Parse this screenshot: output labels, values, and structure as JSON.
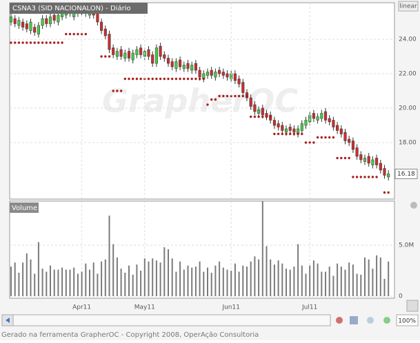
{
  "chart_data": [
    {
      "type": "candlestick",
      "title": "CSNA3 (SID NACIONALON) - Diário",
      "scale": "linear",
      "watermark": "GrapherOC",
      "open": [
        25.0,
        25.2,
        24.8,
        25.0,
        24.9,
        24.5,
        24.7,
        24.3,
        24.8,
        25.2,
        24.9,
        25.4,
        25.0,
        25.3,
        25.4,
        25.8,
        25.3,
        25.5,
        25.9,
        25.7,
        25.4,
        25.8,
        25.5,
        25.0,
        24.6,
        24.3,
        23.5,
        23.0,
        23.4,
        22.9,
        23.3,
        22.8,
        23.1,
        23.5,
        23.0,
        23.4,
        23.1,
        22.6,
        23.6,
        23.1,
        22.9,
        22.7,
        22.3,
        22.8,
        22.3,
        22.6,
        22.2,
        22.6,
        22.2,
        21.7,
        21.9,
        22.2,
        21.8,
        22.2,
        22.1,
        22.0,
        21.7,
        22.0,
        21.7,
        21.5,
        20.9,
        20.6,
        20.2,
        19.7,
        20.0,
        19.7,
        19.6,
        19.3,
        19.1,
        19.0,
        18.6,
        18.9,
        18.8,
        18.5,
        18.7,
        19.0,
        19.2,
        19.7,
        19.3,
        19.4,
        19.8,
        19.4,
        19.3,
        19.0,
        18.8,
        18.6,
        18.2,
        18.1,
        17.7,
        17.3,
        16.9,
        17.2,
        16.7,
        17.1,
        16.8,
        16.5,
        16.0
      ],
      "high": [
        25.5,
        25.4,
        25.3,
        25.2,
        25.1,
        25.2,
        24.9,
        25.0,
        25.4,
        25.4,
        25.5,
        25.6,
        25.6,
        25.7,
        25.9,
        26.0,
        25.8,
        26.0,
        26.0,
        25.9,
        25.9,
        26.0,
        25.7,
        25.2,
        24.8,
        24.5,
        23.7,
        23.5,
        23.6,
        23.4,
        23.5,
        23.4,
        23.6,
        23.7,
        23.5,
        23.6,
        23.3,
        23.7,
        23.8,
        23.3,
        23.1,
        22.9,
        22.9,
        23.0,
        22.7,
        22.8,
        22.7,
        22.8,
        22.4,
        22.2,
        22.3,
        22.4,
        22.3,
        22.4,
        22.3,
        22.2,
        22.2,
        22.2,
        21.9,
        21.7,
        21.1,
        20.8,
        20.4,
        20.1,
        20.2,
        19.9,
        19.8,
        19.5,
        19.3,
        19.2,
        19.0,
        19.1,
        19.0,
        19.0,
        19.3,
        19.5,
        19.8,
        19.9,
        19.7,
        19.9,
        20.0,
        19.6,
        19.5,
        19.2,
        19.0,
        18.8,
        18.4,
        18.3,
        17.9,
        17.5,
        17.3,
        17.4,
        17.2,
        17.3,
        17.0,
        16.7,
        16.4
      ],
      "low": [
        24.8,
        24.7,
        24.6,
        24.5,
        24.4,
        24.3,
        24.2,
        24.1,
        24.6,
        24.7,
        24.7,
        24.9,
        24.8,
        25.1,
        25.2,
        25.3,
        25.1,
        25.3,
        25.4,
        25.3,
        25.2,
        25.2,
        24.8,
        24.3,
        24.0,
        23.2,
        22.9,
        22.8,
        22.8,
        22.7,
        22.7,
        22.6,
        22.9,
        22.9,
        22.8,
        22.8,
        22.4,
        22.4,
        22.8,
        22.7,
        22.4,
        22.2,
        22.1,
        22.2,
        22.1,
        22.1,
        22.0,
        22.0,
        21.6,
        21.5,
        21.7,
        21.7,
        21.6,
        21.8,
        21.7,
        21.6,
        21.5,
        21.4,
        21.2,
        20.7,
        20.4,
        19.9,
        19.6,
        19.5,
        19.4,
        19.3,
        19.1,
        18.8,
        18.7,
        18.5,
        18.4,
        18.5,
        18.4,
        18.3,
        18.5,
        18.8,
        19.0,
        19.2,
        19.1,
        19.2,
        19.1,
        19.0,
        18.7,
        18.5,
        18.3,
        17.9,
        17.8,
        17.4,
        17.0,
        16.8,
        16.7,
        16.6,
        16.5,
        16.5,
        16.2,
        15.9,
        15.8
      ],
      "close": [
        25.3,
        24.9,
        25.1,
        24.7,
        24.6,
        25.0,
        24.4,
        24.8,
        25.2,
        24.9,
        25.3,
        25.1,
        25.4,
        25.5,
        25.7,
        25.5,
        25.6,
        25.8,
        25.6,
        25.5,
        25.7,
        25.4,
        25.0,
        24.5,
        24.2,
        23.4,
        23.1,
        23.3,
        23.0,
        23.2,
        22.9,
        23.2,
        23.4,
        23.1,
        23.3,
        23.0,
        22.6,
        23.5,
        23.0,
        22.9,
        22.6,
        22.4,
        22.7,
        22.4,
        22.5,
        22.3,
        22.5,
        22.2,
        21.8,
        22.0,
        22.1,
        21.9,
        22.1,
        22.0,
        21.9,
        21.8,
        22.0,
        21.6,
        21.4,
        20.9,
        20.6,
        20.1,
        19.8,
        19.9,
        19.6,
        19.5,
        19.3,
        19.0,
        18.9,
        18.7,
        18.8,
        18.7,
        18.6,
        18.8,
        19.1,
        19.3,
        19.6,
        19.4,
        19.5,
        19.7,
        19.3,
        19.2,
        18.9,
        18.7,
        18.5,
        18.1,
        18.0,
        17.6,
        17.2,
        17.0,
        17.1,
        16.8,
        17.0,
        16.7,
        16.4,
        16.1,
        16.18
      ],
      "stop": [
        23.8,
        23.8,
        23.8,
        23.8,
        23.8,
        23.8,
        23.8,
        23.8,
        23.8,
        23.8,
        23.8,
        23.8,
        23.8,
        23.8,
        24.3,
        24.3,
        24.3,
        24.3,
        24.3,
        24.3,
        null,
        null,
        null,
        23.0,
        23.0,
        23.0,
        21.0,
        21.0,
        21.0,
        21.7,
        21.7,
        21.7,
        21.7,
        21.7,
        21.7,
        21.7,
        21.7,
        21.7,
        21.7,
        21.7,
        21.7,
        21.7,
        21.7,
        21.7,
        21.7,
        21.7,
        21.7,
        21.7,
        21.7,
        21.7,
        20.2,
        20.5,
        20.5,
        20.7,
        20.7,
        20.7,
        20.7,
        20.7,
        20.7,
        20.7,
        20.7,
        19.5,
        19.5,
        19.5,
        19.5,
        19.5,
        19.5,
        18.5,
        18.5,
        18.5,
        18.5,
        18.5,
        18.5,
        18.5,
        18.5,
        18.0,
        18.0,
        18.0,
        18.3,
        18.3,
        18.3,
        18.3,
        18.3,
        17.1,
        17.1,
        17.1,
        17.1,
        16.0,
        16.0,
        16.0,
        16.0,
        16.0,
        16.0,
        16.0,
        null,
        15.1,
        15.1
      ],
      "up_color": "#44cc44",
      "down_color": "#c83030",
      "stop_color": "#a82020",
      "ylim": [
        14.72,
        26.12
      ],
      "yticks": [
        {
          "value": 18,
          "label": "18.00"
        },
        {
          "value": 20,
          "label": "20.00"
        },
        {
          "value": 22,
          "label": "22.00"
        },
        {
          "value": 24,
          "label": "24.00"
        }
      ],
      "grid": true
    },
    {
      "type": "bar",
      "title": "Volume",
      "color": "#7a7a7a",
      "categories": [
        null,
        null,
        null,
        null,
        null,
        null,
        null,
        null,
        null,
        null,
        null,
        null,
        null,
        null,
        null,
        null,
        null,
        null,
        "Apr11",
        null,
        null,
        null,
        null,
        null,
        null,
        null,
        null,
        null,
        null,
        null,
        null,
        null,
        null,
        null,
        "May11",
        null,
        null,
        null,
        null,
        null,
        null,
        null,
        null,
        null,
        null,
        null,
        null,
        null,
        null,
        null,
        null,
        null,
        null,
        null,
        null,
        null,
        "Jun11",
        null,
        null,
        null,
        null,
        null,
        null,
        null,
        null,
        null,
        null,
        null,
        null,
        null,
        null,
        null,
        null,
        null,
        null,
        null,
        "Jul11",
        null,
        null,
        null,
        null,
        null,
        null,
        null,
        null,
        null,
        null,
        null,
        null,
        null,
        null,
        null,
        null,
        null,
        null,
        null,
        null
      ],
      "values": [
        2.9,
        3.3,
        2.3,
        3.3,
        4.2,
        3.6,
        2.2,
        5.3,
        2.7,
        2.4,
        3.0,
        2.6,
        2.6,
        2.8,
        2.6,
        2.6,
        2.8,
        2.2,
        2.4,
        3.2,
        2.6,
        3.3,
        2.2,
        3.4,
        3.6,
        7.9,
        5.1,
        3.8,
        2.7,
        2.3,
        3.0,
        2.1,
        3.1,
        2.5,
        3.7,
        3.4,
        3.7,
        3.5,
        3.3,
        4.8,
        4.6,
        3.7,
        2.4,
        3.4,
        2.6,
        3.0,
        2.8,
        2.9,
        3.4,
        2.4,
        2.8,
        2.3,
        3.0,
        3.4,
        2.8,
        2.6,
        2.5,
        3.2,
        2.4,
        3.0,
        2.9,
        3.4,
        3.9,
        3.6,
        9.3,
        4.9,
        3.6,
        3.1,
        3.5,
        3.2,
        2.7,
        2.6,
        2.9,
        5.1,
        3.0,
        2.2,
        3.0,
        3.5,
        3.2,
        2.4,
        2.4,
        2.9,
        2.0,
        3.2,
        2.9,
        2.6,
        3.3,
        3.1,
        2.2,
        2.1,
        3.8,
        3.6,
        2.7,
        4.0,
        3.8,
        1.7,
        3.4
      ],
      "ylim": [
        0,
        9.32
      ],
      "yticks": [
        0,
        {
          "value": 5,
          "label": "5.0M"
        }
      ],
      "grid": true
    }
  ],
  "ui": {
    "zoom": "100%",
    "footer": "Gerado na ferramenta GrapherOC - Copyright 2008, OperAção Consultoria"
  }
}
